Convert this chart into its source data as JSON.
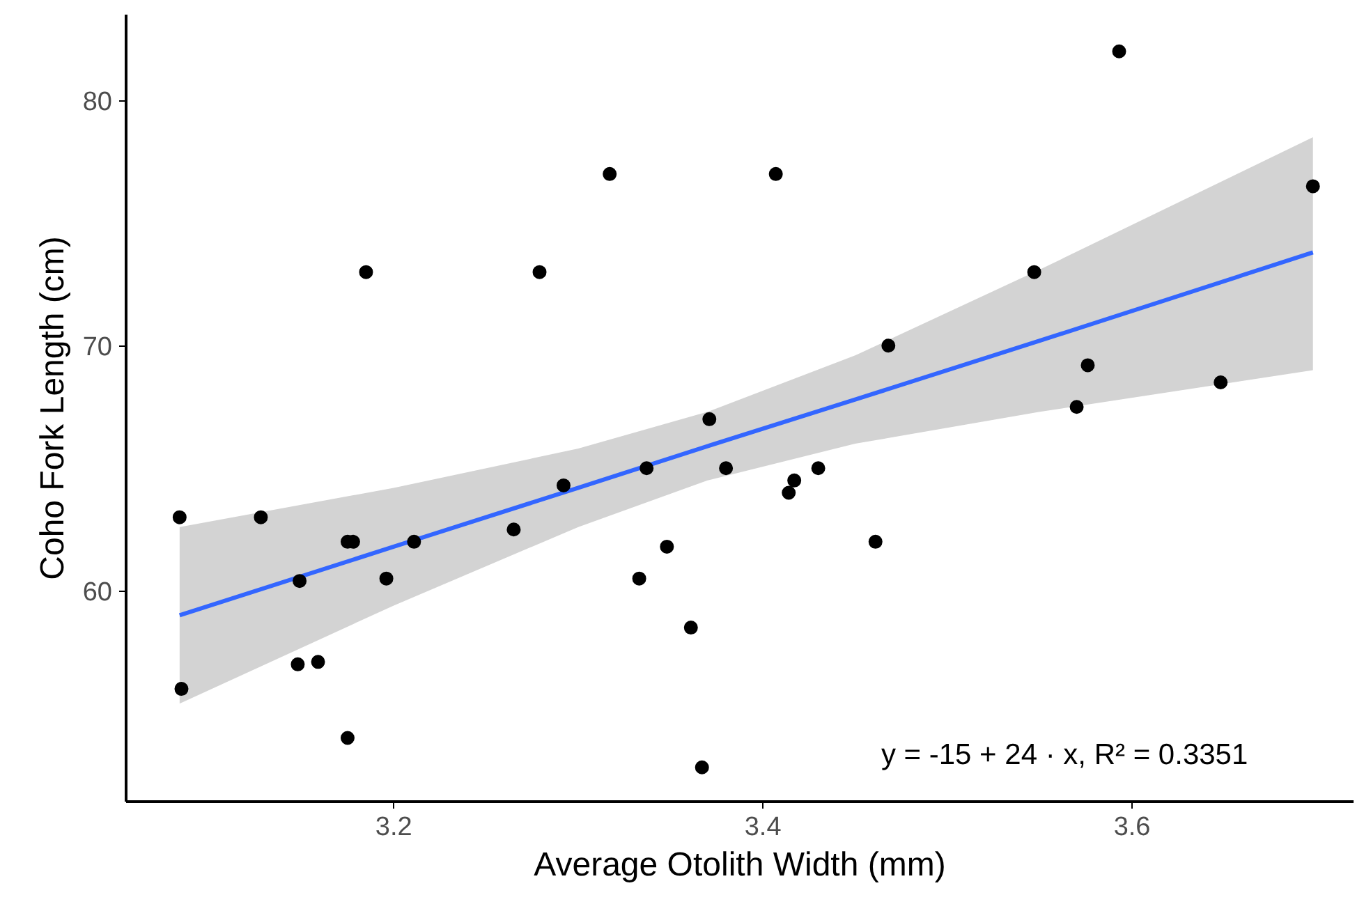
{
  "chart_data": {
    "type": "scatter",
    "xlabel": "Average Otolith Width (mm)",
    "ylabel": "Coho Fork Length (cm)",
    "xlim": [
      3.055,
      3.72
    ],
    "ylim": [
      51.4,
      83.5
    ],
    "xticks": [
      3.2,
      3.4,
      3.6
    ],
    "yticks": [
      60,
      70,
      80
    ],
    "grid": false,
    "annotations": [
      "y = -15 + 24 · x,  R² = 0.3351"
    ],
    "series": [
      {
        "marker": "circle",
        "color": "#000000",
        "x": [
          3.185,
          3.279,
          3.317,
          3.371,
          3.593,
          3.407,
          3.698,
          3.547,
          3.468,
          3.576,
          3.648,
          3.57,
          3.084,
          3.128,
          3.337,
          3.38,
          3.292,
          3.175,
          3.178,
          3.211,
          3.265,
          3.348,
          3.149,
          3.196,
          3.333,
          3.361,
          3.148,
          3.159,
          3.085,
          3.175,
          3.367,
          3.43,
          3.417,
          3.414,
          3.461
        ],
        "values": [
          73.0,
          73.0,
          77.0,
          67.0,
          82.0,
          77.0,
          76.5,
          73.0,
          70.0,
          69.2,
          68.5,
          67.5,
          63.0,
          63.0,
          65.0,
          65.0,
          64.3,
          62.0,
          62.0,
          62.0,
          62.5,
          61.8,
          60.4,
          60.5,
          60.5,
          58.5,
          57.0,
          57.1,
          56.0,
          54.0,
          52.8,
          65.0,
          64.5,
          64.0,
          62.0
        ]
      },
      {
        "type": "line",
        "color": "#3366ff",
        "x": [
          3.084,
          3.2,
          3.3,
          3.37,
          3.45,
          3.55,
          3.698
        ],
        "values": [
          59.0,
          61.8,
          64.2,
          65.9,
          67.8,
          70.2,
          73.8
        ],
        "lower": [
          55.4,
          59.4,
          62.6,
          64.5,
          66.0,
          67.3,
          69.0
        ],
        "upper": [
          62.6,
          64.2,
          65.8,
          67.3,
          69.6,
          73.1,
          78.5
        ]
      }
    ]
  }
}
